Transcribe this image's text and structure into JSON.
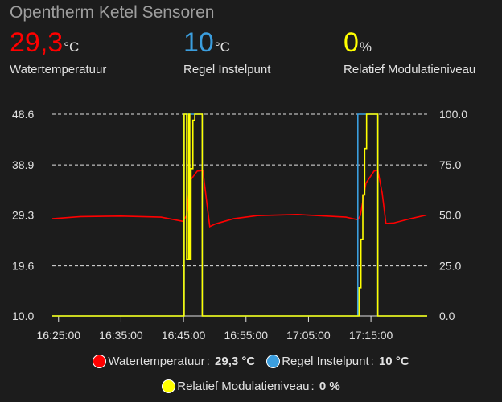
{
  "card": {
    "title": "Opentherm Ketel Sensoren"
  },
  "sensors": [
    {
      "value": "29,3",
      "unit": "°C",
      "label": "Watertemperatuur",
      "color": "#ff0000"
    },
    {
      "value": "10",
      "unit": "°C",
      "label": "Regel Instelpunt",
      "color": "#3b9ede"
    },
    {
      "value": "0",
      "unit": "%",
      "label": "Relatief Modulatieniveau",
      "color": "#ffff00"
    }
  ],
  "chart_data": {
    "type": "line",
    "xlim": [
      "16:24:00",
      "17:24:00"
    ],
    "x_ticks": [
      "16:25:00",
      "16:35:00",
      "16:45:00",
      "16:55:00",
      "17:05:00",
      "17:15:00"
    ],
    "y_left": {
      "range": [
        10.0,
        48.6
      ],
      "ticks": [
        "10.0",
        "19.6",
        "29.3",
        "38.9",
        "48.6"
      ]
    },
    "y_right": {
      "range": [
        0.0,
        100.0
      ],
      "ticks": [
        "0.0",
        "25.0",
        "50.0",
        "75.0",
        "100.0"
      ]
    },
    "grid": "horizontal dashed",
    "legend_placement": "bottom",
    "series": [
      {
        "name": "Watertemperatuur",
        "axis": "left",
        "color": "#ff0000",
        "step": false,
        "legend_value": "29,3 °C",
        "points": [
          [
            "16:24:00",
            28.6
          ],
          [
            "16:28:30",
            29.0
          ],
          [
            "16:35:00",
            29.1
          ],
          [
            "16:41:24",
            28.9
          ],
          [
            "16:44:54",
            28.1
          ],
          [
            "16:45:30",
            29.2
          ],
          [
            "16:46:00",
            35.8
          ],
          [
            "16:47:12",
            37.7
          ],
          [
            "16:48:06",
            37.8
          ],
          [
            "16:49:12",
            27.1
          ],
          [
            "16:50:06",
            27.6
          ],
          [
            "16:53:00",
            28.6
          ],
          [
            "16:56:48",
            29.2
          ],
          [
            "17:03:18",
            29.4
          ],
          [
            "17:11:00",
            28.9
          ],
          [
            "17:12:54",
            28.4
          ],
          [
            "17:13:18",
            29.2
          ],
          [
            "17:14:12",
            35.4
          ],
          [
            "17:15:30",
            37.7
          ],
          [
            "17:16:06",
            37.9
          ],
          [
            "17:16:48",
            33.5
          ],
          [
            "17:17:24",
            27.7
          ],
          [
            "17:18:42",
            27.8
          ],
          [
            "17:21:18",
            28.6
          ],
          [
            "17:23:54",
            29.3
          ]
        ]
      },
      {
        "name": "Regel Instelpunt",
        "axis": "left",
        "color": "#3b9ede",
        "step": true,
        "legend_value": "10 °C",
        "points": [
          [
            "16:24:00",
            10
          ],
          [
            "16:45:06",
            48.6
          ],
          [
            "16:48:00",
            10
          ],
          [
            "17:12:54",
            48.6
          ],
          [
            "17:16:06",
            10
          ],
          [
            "17:24:00",
            10
          ]
        ]
      },
      {
        "name": "Relatief Modulatieniveau",
        "axis": "right",
        "color": "#ffff00",
        "step": true,
        "legend_value": "0 %",
        "points": [
          [
            "16:24:00",
            0
          ],
          [
            "16:45:06",
            100
          ],
          [
            "16:45:30",
            28
          ],
          [
            "16:45:48",
            100
          ],
          [
            "16:46:00",
            28
          ],
          [
            "16:46:12",
            73
          ],
          [
            "16:46:30",
            97
          ],
          [
            "16:46:48",
            100
          ],
          [
            "16:48:00",
            0
          ],
          [
            "17:13:06",
            14
          ],
          [
            "17:13:24",
            38
          ],
          [
            "17:13:42",
            60
          ],
          [
            "17:14:00",
            83
          ],
          [
            "17:14:18",
            100
          ],
          [
            "17:16:06",
            0
          ],
          [
            "17:24:00",
            0
          ]
        ]
      }
    ]
  }
}
